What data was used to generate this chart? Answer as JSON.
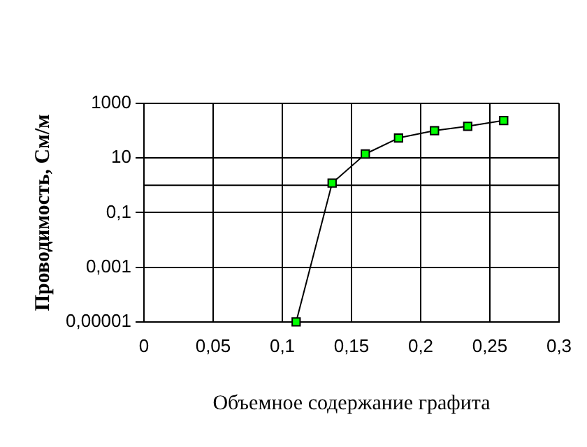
{
  "chart_data": {
    "type": "line",
    "xlabel": "Объемное содержание графита",
    "ylabel": "Проводимость, См/м",
    "series": [
      {
        "color": "#00ff00",
        "x": [
          0.11,
          0.136,
          0.16,
          0.184,
          0.21,
          0.234,
          0.26
        ],
        "values": [
          1e-05,
          1.2,
          14,
          54,
          100,
          145,
          235
        ]
      }
    ],
    "xlim": [
      0,
      0.3
    ],
    "xticks": [
      0,
      {
        "value": 0.05,
        "label": "0,05"
      },
      {
        "value": 0.1,
        "label": "0,1"
      },
      {
        "value": 0.15,
        "label": "0,15"
      },
      {
        "value": 0.2,
        "label": "0,2"
      },
      {
        "value": 0.25,
        "label": "0,25"
      },
      {
        "value": 0.3,
        "label": "0,3"
      }
    ],
    "ylim": [
      1e-05,
      1000
    ],
    "yticks": [
      {
        "value": 1e-05,
        "label": "0,00001"
      },
      {
        "value": 0.001,
        "label": "0,001"
      },
      {
        "value": 0.1,
        "label": "0,1"
      },
      10,
      1000
    ],
    "log": "y",
    "grid": true,
    "legend": false,
    "marker": "square",
    "line_style": "solid",
    "ref_lines": [
      {
        "axis": "y",
        "value": 1,
        "color": "#000000"
      }
    ]
  }
}
